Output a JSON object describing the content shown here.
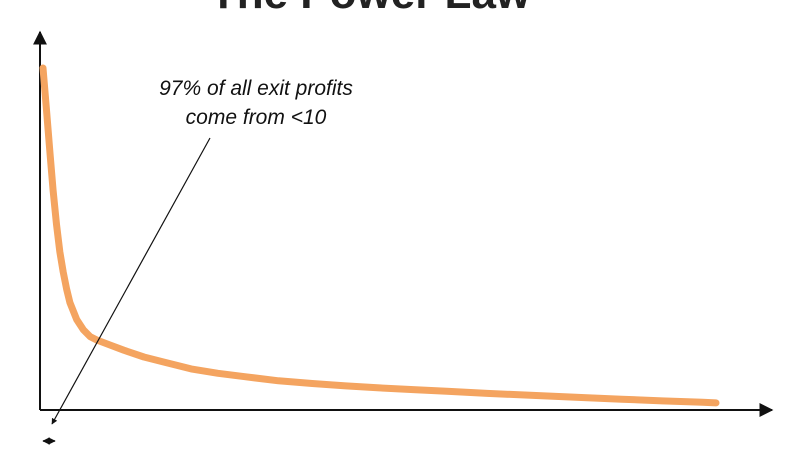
{
  "chart_data": {
    "type": "line",
    "title": "The Power Law",
    "xlabel": "",
    "ylabel": "",
    "grid": false,
    "legend": "none",
    "x": [
      0,
      0.5,
      1,
      1.5,
      2,
      2.5,
      3,
      3.5,
      4,
      5,
      6,
      7,
      8,
      10,
      12,
      15,
      18,
      22,
      26,
      30,
      35,
      40,
      45,
      50,
      55,
      60,
      66,
      72,
      80,
      86,
      92,
      98,
      100
    ],
    "series": [
      {
        "values": [
          100,
          88,
          76,
          64,
          54,
          46,
          40,
          35,
          31,
          26,
          23,
          21,
          20,
          18.5,
          17,
          15,
          13.5,
          11.5,
          10.2,
          9.2,
          8.0,
          7.2,
          6.5,
          5.9,
          5.4,
          4.9,
          4.3,
          3.8,
          3.1,
          2.6,
          2.1,
          1.7,
          1.5
        ],
        "color": "#F4A460"
      }
    ],
    "annotations": [
      {
        "lines": [
          "97% of all exit profits",
          "come from <10"
        ]
      }
    ]
  }
}
